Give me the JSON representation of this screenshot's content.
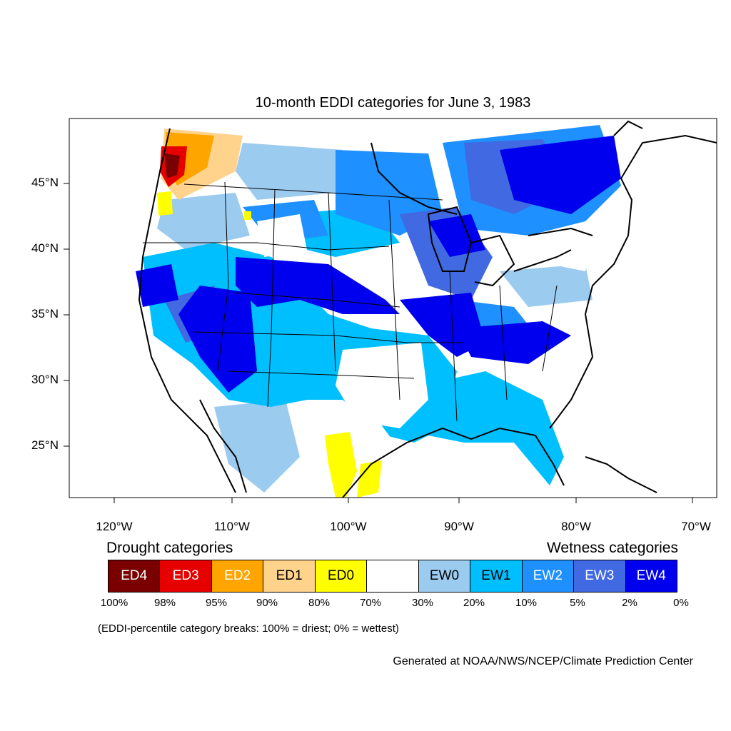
{
  "title": "10-month EDDI categories for June 3, 1983",
  "colors": {
    "ED4": "#7a0000",
    "ED3": "#e60000",
    "ED2": "#ffa500",
    "ED1": "#ffd38c",
    "ED0": "#ffff00",
    "neutral": "#ffffff",
    "EW0": "#9ccbf0",
    "EW1": "#00bfff",
    "EW2": "#1e90ff",
    "EW3": "#4169e1",
    "EW4": "#0000ee",
    "outline": "#000000"
  },
  "axes": {
    "lat_labels": [
      "45°N",
      "40°N",
      "35°N",
      "30°N",
      "25°N"
    ],
    "lon_labels": [
      "120°W",
      "110°W",
      "100°W",
      "90°W",
      "80°W",
      "70°W"
    ]
  },
  "legend": {
    "drought_heading": "Drought categories",
    "wetness_heading": "Wetness categories",
    "categories": [
      {
        "label": "ED4",
        "color": "#7a0000",
        "text_color": "#ffffff"
      },
      {
        "label": "ED3",
        "color": "#e60000",
        "text_color": "#ffffff"
      },
      {
        "label": "ED2",
        "color": "#ffa500",
        "text_color": "#ffffff"
      },
      {
        "label": "ED1",
        "color": "#ffd38c",
        "text_color": "#000000"
      },
      {
        "label": "ED0",
        "color": "#ffff00",
        "text_color": "#000000"
      },
      {
        "label": "",
        "color": "#ffffff",
        "text_color": "#000000"
      },
      {
        "label": "EW0",
        "color": "#9ccbf0",
        "text_color": "#000000"
      },
      {
        "label": "EW1",
        "color": "#00bfff",
        "text_color": "#000000"
      },
      {
        "label": "EW2",
        "color": "#1e90ff",
        "text_color": "#ffffff"
      },
      {
        "label": "EW3",
        "color": "#4169e1",
        "text_color": "#ffffff"
      },
      {
        "label": "EW4",
        "color": "#0000ee",
        "text_color": "#ffffff"
      }
    ],
    "percentiles": [
      "100%",
      "98%",
      "95%",
      "90%",
      "80%",
      "70%",
      "30%",
      "20%",
      "10%",
      "5%",
      "2%",
      "0%"
    ],
    "note": "(EDDI-percentile category breaks: 100% = driest; 0% = wettest)"
  },
  "credit": "Generated at NOAA/NWS/NCEP/Climate Prediction Center"
}
